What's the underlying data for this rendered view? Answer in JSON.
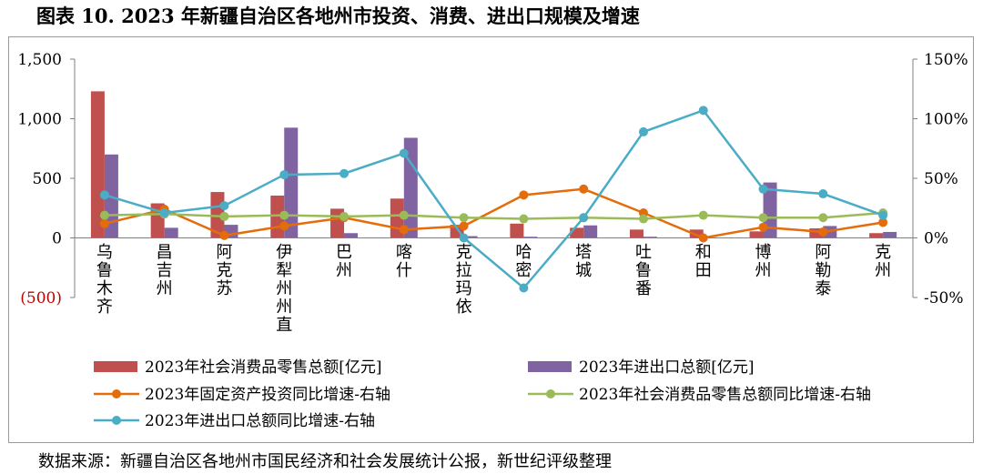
{
  "figure": {
    "title": "图表 10. 2023 年新疆自治区各地州市投资、消费、进出口规模及增速",
    "source": "数据来源：新疆自治区各地州市国民经济和社会发展统计公报，新世纪评级整理"
  },
  "chart_data": {
    "type": "bar",
    "categories": [
      "乌鲁木齐",
      "昌吉州",
      "阿克苏",
      "伊犁州州直",
      "巴州",
      "喀什",
      "克拉玛依",
      "哈密",
      "塔城",
      "吐鲁番",
      "和田",
      "博州",
      "阿勒泰",
      "克州"
    ],
    "left_axis": {
      "ylim": [
        -500,
        1500
      ],
      "ticks": [
        -500,
        0,
        500,
        1000,
        1500
      ],
      "tick_labels": [
        "(500)",
        "0",
        "500",
        "1,000",
        "1,500"
      ],
      "negative_color": "#c00000"
    },
    "right_axis": {
      "ylim": [
        -0.5,
        1.5
      ],
      "ticks": [
        -0.5,
        0,
        0.5,
        1.0,
        1.5
      ],
      "tick_labels": [
        "-50%",
        "0%",
        "50%",
        "100%",
        "150%"
      ]
    },
    "bar_series": [
      {
        "name": "2023年社会消费品零售总额[亿元]",
        "color": "#c0504d",
        "values": [
          1230,
          290,
          385,
          355,
          245,
          330,
          110,
          120,
          85,
          70,
          70,
          55,
          80,
          40
        ]
      },
      {
        "name": "2023年进出口总额[亿元]",
        "color": "#8064a2",
        "values": [
          700,
          85,
          110,
          925,
          40,
          840,
          15,
          10,
          105,
          10,
          5,
          465,
          100,
          50
        ]
      }
    ],
    "line_series": [
      {
        "name": "2023年固定资产投资同比增速-右轴",
        "color": "#e46c0a",
        "values": [
          0.12,
          0.24,
          0.02,
          0.1,
          0.17,
          0.07,
          0.1,
          0.36,
          0.41,
          0.21,
          0.0,
          0.09,
          0.05,
          0.13
        ]
      },
      {
        "name": "2023年社会消费品零售总额同比增速-右轴",
        "color": "#9bbb59",
        "values": [
          0.19,
          0.2,
          0.18,
          0.19,
          0.18,
          0.19,
          0.17,
          0.16,
          0.17,
          0.16,
          0.19,
          0.17,
          0.17,
          0.21
        ]
      },
      {
        "name": "2023年进出口总额同比增速-右轴",
        "color": "#4bacc6",
        "values": [
          0.36,
          0.21,
          0.27,
          0.53,
          0.54,
          0.71,
          0.0,
          -0.42,
          0.17,
          0.89,
          1.07,
          0.41,
          0.37,
          0.19
        ]
      }
    ],
    "legend_position": "bottom",
    "grid": false
  }
}
